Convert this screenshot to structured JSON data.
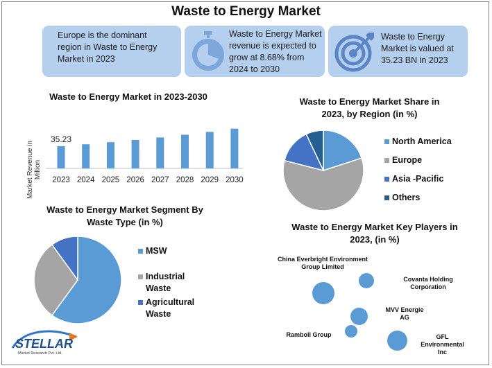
{
  "title": "Waste to Energy Market",
  "cards": [
    {
      "text": "Europe is the dominant region in Waste to Energy Market in 2023",
      "icon": "none"
    },
    {
      "text": "Waste to Energy Market revenue is expected to grow at 8.68% from 2024 to 2030",
      "icon": "stopwatch-icon"
    },
    {
      "text": "Waste to Energy Market is valued at 35.23 BN in 2023",
      "icon": "target-icon"
    }
  ],
  "colors": {
    "card_bg": "#b4d0ee",
    "primary": "#5b9bd5",
    "gray": "#a5a5a5",
    "blue": "#4472c4",
    "dark": "#255e91"
  },
  "chart_data": [
    {
      "type": "bar",
      "title": "Waste to Energy Market in 2023-2030",
      "ylabel": "Market Revenue in Million",
      "xlabel": "",
      "categories": [
        "2023",
        "2024",
        "2025",
        "2026",
        "2027",
        "2028",
        "2029",
        "2030"
      ],
      "values": [
        35.23,
        38.3,
        41.6,
        45.2,
        49.1,
        53.4,
        58.0,
        63.1
      ],
      "data_labels": [
        "35.23"
      ],
      "ylim": [
        0,
        66
      ]
    },
    {
      "type": "pie",
      "title": "Waste to Energy Market Share in 2023, by Region (in %)",
      "categories": [
        "North America",
        "Europe",
        "Asia -Pacific",
        "Others"
      ],
      "values": [
        20,
        59,
        14,
        7
      ],
      "colors": [
        "#5b9bd5",
        "#a5a5a5",
        "#4472c4",
        "#255e91"
      ],
      "legend": "right"
    },
    {
      "type": "pie",
      "title": "Waste to Energy Market Segment By Waste Type (in %)",
      "categories": [
        "MSW",
        "Industrial Waste",
        "Agricultural Waste"
      ],
      "values": [
        60,
        30,
        10
      ],
      "colors": [
        "#5b9bd5",
        "#a5a5a5",
        "#4472c4"
      ],
      "legend": "right"
    },
    {
      "type": "scatter",
      "title": "Waste to Energy Market Key Players in 2023, (in %)",
      "points": [
        {
          "label": "China Everbright Environment Group Limited",
          "size": 16
        },
        {
          "label": "Covanta Holding Corporation",
          "size": 11
        },
        {
          "label": "MVV Energie AG",
          "size": 12.5
        },
        {
          "label": "Ramboll Group",
          "size": 9
        },
        {
          "label": "GFL Environmental Inc",
          "size": 14.5
        }
      ]
    }
  ],
  "logo": {
    "name": "STELLAR",
    "subtitle": "Market Research Pvt. Ltd."
  }
}
